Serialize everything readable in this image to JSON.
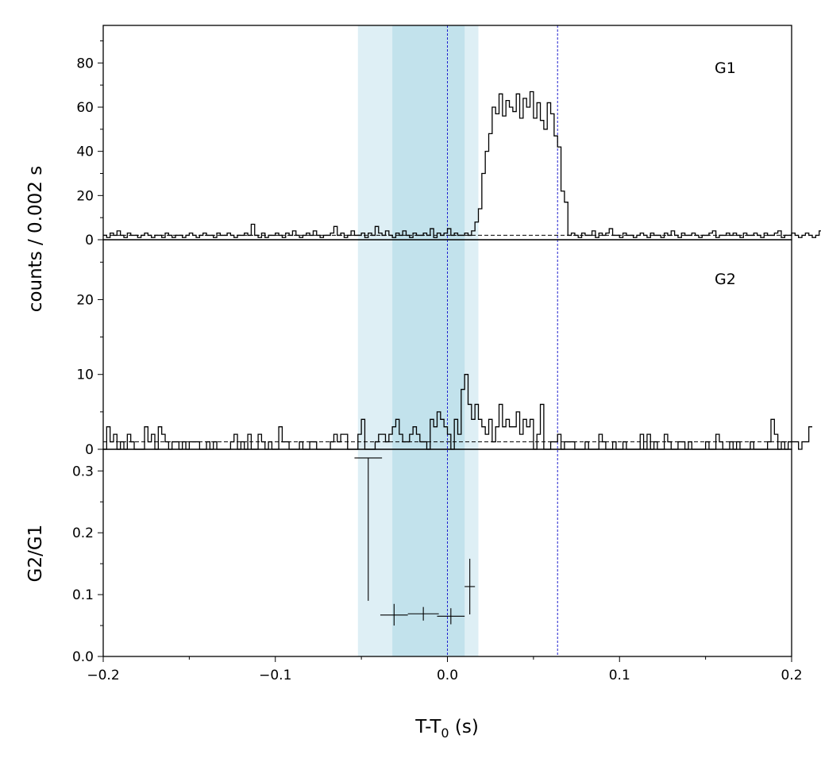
{
  "chart_data": {
    "type": "line",
    "xlabel_main": "T-T",
    "xlabel_sub": "0",
    "xlabel_unit": " (s)",
    "shared_ylabel": "counts /  0.002 s",
    "xlim": [
      -0.2,
      0.2
    ],
    "xticks": [
      "−0.2",
      "−0.1",
      "0.0",
      "0.1",
      "0.2"
    ],
    "bands": [
      {
        "name": "outer-interval",
        "x0": -0.052,
        "x1": 0.018,
        "color": "#deeff5"
      },
      {
        "name": "inner-interval",
        "x0": -0.032,
        "x1": 0.01,
        "color": "#c2e2ec"
      }
    ],
    "vlines": [
      0.0,
      0.064
    ],
    "vline_color": "#1f1fcf",
    "panels": [
      {
        "label": "G1",
        "type": "step",
        "ylim": [
          0,
          97
        ],
        "yticks": [
          0,
          20,
          40,
          60,
          80
        ],
        "ytick_labels": [
          "0",
          "20",
          "40",
          "60",
          "80"
        ],
        "background_level": 2,
        "x_start": -0.2,
        "bin_width": 0.002,
        "counts": [
          2,
          1,
          3,
          2,
          4,
          2,
          1,
          3,
          2,
          2,
          1,
          2,
          3,
          2,
          1,
          2,
          2,
          1,
          3,
          2,
          1,
          2,
          2,
          1,
          2,
          3,
          2,
          1,
          2,
          3,
          2,
          2,
          1,
          3,
          2,
          2,
          3,
          2,
          1,
          2,
          2,
          3,
          2,
          7,
          2,
          1,
          3,
          1,
          2,
          2,
          3,
          2,
          1,
          3,
          2,
          4,
          2,
          1,
          2,
          3,
          2,
          4,
          2,
          1,
          2,
          2,
          3,
          6,
          2,
          3,
          1,
          2,
          4,
          2,
          2,
          3,
          1,
          3,
          2,
          6,
          3,
          2,
          4,
          2,
          1,
          3,
          2,
          4,
          2,
          1,
          3,
          2,
          2,
          3,
          2,
          5,
          1,
          3,
          2,
          3,
          5,
          2,
          3,
          2,
          2,
          3,
          2,
          4,
          8,
          14,
          30,
          40,
          48,
          60,
          57,
          66,
          56,
          63,
          60,
          58,
          66,
          55,
          64,
          60,
          67,
          55,
          62,
          54,
          50,
          62,
          57,
          47,
          42,
          22,
          17,
          2,
          3,
          2,
          1,
          3,
          2,
          2,
          4,
          1,
          3,
          2,
          3,
          5,
          2,
          2,
          1,
          3,
          2,
          2,
          1,
          2,
          3,
          2,
          1,
          3,
          2,
          2,
          1,
          3,
          2,
          4,
          2,
          1,
          3,
          2,
          2,
          3,
          2,
          1,
          2,
          2,
          3,
          4,
          1,
          2,
          2,
          3,
          2,
          3,
          2,
          1,
          3,
          2,
          2,
          3,
          2,
          1,
          3,
          2,
          2,
          3,
          4,
          1,
          2,
          2,
          3,
          2,
          1,
          2,
          3,
          2,
          1,
          2,
          4,
          1
        ]
      },
      {
        "label": "G2",
        "type": "step",
        "ylim": [
          0,
          28
        ],
        "yticks": [
          0,
          10,
          20
        ],
        "ytick_labels": [
          "0",
          "10",
          "20"
        ],
        "background_level": 1,
        "x_start": -0.2,
        "bin_width": 0.002,
        "counts": [
          0,
          3,
          1,
          2,
          0,
          1,
          0,
          2,
          1,
          0,
          0,
          0,
          3,
          1,
          2,
          0,
          3,
          2,
          1,
          0,
          1,
          1,
          0,
          1,
          0,
          1,
          1,
          1,
          0,
          0,
          1,
          0,
          1,
          0,
          0,
          0,
          0,
          1,
          2,
          0,
          1,
          0,
          2,
          0,
          0,
          2,
          1,
          0,
          1,
          0,
          0,
          3,
          1,
          1,
          0,
          0,
          0,
          1,
          0,
          0,
          1,
          1,
          0,
          0,
          0,
          0,
          1,
          2,
          1,
          2,
          2,
          0,
          0,
          0,
          2,
          4,
          0,
          0,
          0,
          1,
          2,
          2,
          1,
          2,
          3,
          4,
          2,
          1,
          1,
          2,
          3,
          2,
          1,
          1,
          0,
          4,
          3,
          5,
          4,
          3,
          2,
          0,
          4,
          2,
          8,
          10,
          6,
          4,
          6,
          4,
          3,
          2,
          4,
          1,
          3,
          6,
          3,
          4,
          3,
          3,
          5,
          2,
          4,
          3,
          4,
          0,
          2,
          6,
          0,
          0,
          1,
          1,
          2,
          0,
          1,
          1,
          1,
          0,
          0,
          0,
          1,
          0,
          0,
          0,
          2,
          1,
          0,
          0,
          1,
          0,
          0,
          1,
          0,
          0,
          0,
          0,
          2,
          0,
          2,
          0,
          1,
          0,
          0,
          2,
          1,
          0,
          0,
          1,
          1,
          0,
          1,
          0,
          0,
          0,
          0,
          1,
          0,
          0,
          2,
          1,
          0,
          0,
          1,
          0,
          1,
          0,
          0,
          0,
          1,
          0,
          0,
          0,
          0,
          1,
          4,
          2,
          0,
          1,
          0,
          1,
          1,
          1,
          0,
          1,
          1,
          3
        ]
      },
      {
        "label": "",
        "type": "errorbar",
        "ylabel": "G2/G1",
        "ylim": [
          0,
          0.335
        ],
        "yticks": [
          0,
          0.1,
          0.2,
          0.3
        ],
        "ytick_labels": [
          "0.0",
          "0.1",
          "0.2",
          "0.3"
        ],
        "points": [
          {
            "x": -0.046,
            "xerr": 0.008,
            "y": 0.321,
            "ylo": 0.09,
            "yhi": 0.321
          },
          {
            "x": -0.031,
            "xerr": 0.008,
            "y": 0.067,
            "ylo": 0.05,
            "yhi": 0.085
          },
          {
            "x": -0.014,
            "xerr": 0.009,
            "y": 0.069,
            "ylo": 0.058,
            "yhi": 0.08
          },
          {
            "x": 0.002,
            "xerr": 0.008,
            "y": 0.065,
            "ylo": 0.052,
            "yhi": 0.078
          },
          {
            "x": 0.013,
            "xerr": 0.003,
            "y": 0.113,
            "ylo": 0.068,
            "yhi": 0.158
          }
        ]
      }
    ]
  }
}
